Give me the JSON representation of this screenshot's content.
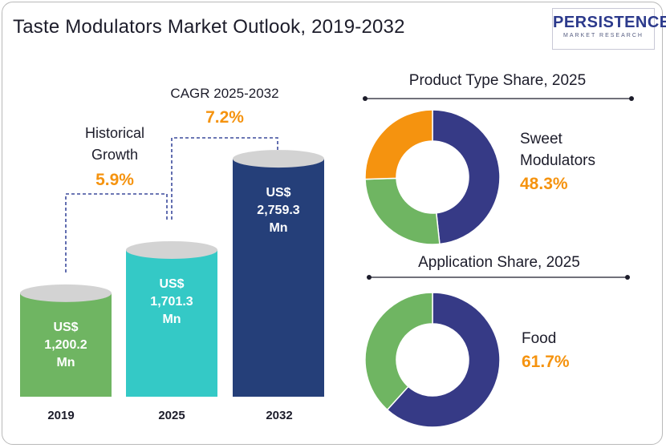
{
  "title": "Taste Modulators Market Outlook, 2019-2032",
  "logo": {
    "main": "PERSISTENCE",
    "sub": "MARKET RESEARCH"
  },
  "colors": {
    "green": "#6fb562",
    "green_top": "#d3d3d3",
    "teal": "#34c9c6",
    "navy": "#253f79",
    "donut_navy": "#363a86",
    "orange": "#f5930f",
    "donut_green": "#6fb562",
    "text": "#1c1c2a"
  },
  "chart_data": [
    {
      "type": "bar",
      "categories": [
        "2019",
        "2025",
        "2032"
      ],
      "values": [
        1200.2,
        1701.3,
        2759.3
      ],
      "value_labels": [
        [
          "US$",
          "1,200.2",
          "Mn"
        ],
        [
          "US$",
          "1,701.3",
          "Mn"
        ],
        [
          "US$",
          "2,759.3",
          "Mn"
        ]
      ],
      "annotations": {
        "historical": {
          "label_lines": [
            "Historical",
            "Growth"
          ],
          "value": "5.9%"
        },
        "forecast": {
          "label": "CAGR 2025-2032",
          "value": "7.2%"
        }
      }
    },
    {
      "type": "pie",
      "title": "Product Type Share, 2025",
      "highlight_label_lines": [
        "Sweet",
        "Modulators"
      ],
      "highlight_value": "48.3%",
      "slices": [
        {
          "name": "Sweet Modulators",
          "value": 48.3,
          "color": "#363a86"
        },
        {
          "value": 26.2,
          "color": "#6fb562"
        },
        {
          "value": 25.5,
          "color": "#f5930f"
        }
      ]
    },
    {
      "type": "pie",
      "title": "Application Share, 2025",
      "highlight_label_lines": [
        "Food"
      ],
      "highlight_value": "61.7%",
      "slices": [
        {
          "name": "Food",
          "value": 61.7,
          "color": "#363a86"
        },
        {
          "value": 38.3,
          "color": "#6fb562"
        }
      ]
    }
  ]
}
